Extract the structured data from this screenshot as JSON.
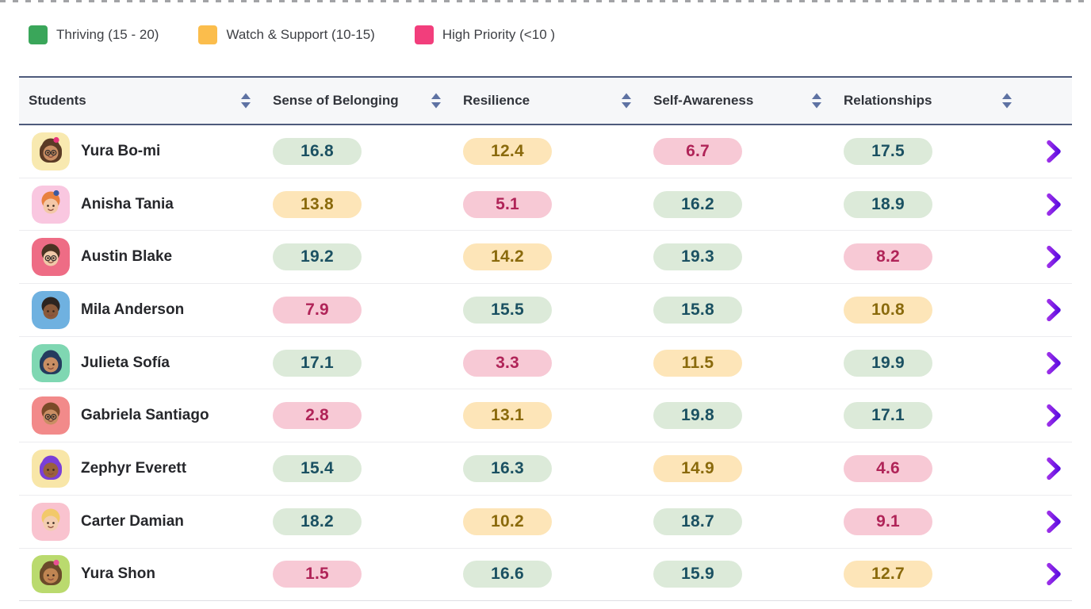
{
  "legend": {
    "items": [
      {
        "label": "Thriving (15 - 20)",
        "color": "#3aa65a"
      },
      {
        "label": "Watch & Support (10-15)",
        "color": "#fbbd4c"
      },
      {
        "label": "High Priority (<10 )",
        "color": "#f23e7c"
      }
    ]
  },
  "table": {
    "columns": [
      {
        "label": "Students"
      },
      {
        "label": "Sense of Belonging"
      },
      {
        "label": "Resilience"
      },
      {
        "label": "Self-Awareness"
      },
      {
        "label": "Relationships"
      }
    ],
    "bands": {
      "thriving_min": 15,
      "watch_min": 10
    },
    "pill_colors": {
      "thriving": {
        "bg": "#dcead9",
        "text": "#1b5162"
      },
      "watch": {
        "bg": "#fde5b8",
        "text": "#8a6a0c"
      },
      "priority": {
        "bg": "#f7c9d5",
        "text": "#b02458"
      }
    },
    "sort_icon_color": "#5e72a3",
    "row_action": {
      "icon": "arrow-right",
      "color_start": "#992ee8",
      "color_end": "#5d0ee0"
    },
    "rows": [
      {
        "name": "Yura Bo-mi",
        "scores": [
          "16.8",
          "12.4",
          "6.7",
          "17.5"
        ],
        "avatar": {
          "bg": "#f8e9b0",
          "hair": "#5a3a25",
          "skin": "#c98e63",
          "glasses": true,
          "long_hair": true,
          "accessory": "#e8327c"
        }
      },
      {
        "name": "Anisha Tania",
        "scores": [
          "13.8",
          "5.1",
          "16.2",
          "18.9"
        ],
        "avatar": {
          "bg": "#f9c7e0",
          "hair": "#e8813f",
          "skin": "#f3c8a8",
          "glasses": false,
          "long_hair": false,
          "accessory": "#3b5aa0"
        }
      },
      {
        "name": "Austin Blake",
        "scores": [
          "19.2",
          "14.2",
          "19.3",
          "8.2"
        ],
        "avatar": {
          "bg": "#ee6c85",
          "hair": "#4a3322",
          "skin": "#f0c9a8",
          "glasses": true,
          "long_hair": false,
          "accessory": null
        }
      },
      {
        "name": "Mila Anderson",
        "scores": [
          "7.9",
          "15.5",
          "15.8",
          "10.8"
        ],
        "avatar": {
          "bg": "#6fb1e0",
          "hair": "#2c2420",
          "skin": "#8a5a3b",
          "glasses": false,
          "long_hair": false,
          "accessory": null
        }
      },
      {
        "name": "Julieta Sofía",
        "scores": [
          "17.1",
          "3.3",
          "11.5",
          "19.9"
        ],
        "avatar": {
          "bg": "#7fd7b2",
          "hair": "#243b5e",
          "skin": "#c98e63",
          "glasses": false,
          "long_hair": true,
          "accessory": null
        }
      },
      {
        "name": "Gabriela Santiago",
        "scores": [
          "2.8",
          "13.1",
          "19.8",
          "17.1"
        ],
        "avatar": {
          "bg": "#f28a8a",
          "hair": "#7a4a28",
          "skin": "#c98e63",
          "glasses": true,
          "long_hair": false,
          "accessory": null
        }
      },
      {
        "name": "Zephyr Everett",
        "scores": [
          "15.4",
          "16.3",
          "14.9",
          "4.6"
        ],
        "avatar": {
          "bg": "#f8e6a8",
          "hair": "#7a3fd8",
          "skin": "#9a613c",
          "glasses": false,
          "long_hair": true,
          "accessory": null
        }
      },
      {
        "name": "Carter Damian",
        "scores": [
          "18.2",
          "10.2",
          "18.7",
          "9.1"
        ],
        "avatar": {
          "bg": "#f9c3cf",
          "hair": "#f2c96a",
          "skin": "#f3cdb0",
          "glasses": false,
          "long_hair": false,
          "accessory": null
        }
      },
      {
        "name": "Yura Shon",
        "scores": [
          "1.5",
          "16.6",
          "15.9",
          "12.7"
        ],
        "avatar": {
          "bg": "#bada6e",
          "hair": "#6b4a2a",
          "skin": "#c08552",
          "glasses": false,
          "long_hair": true,
          "accessory": "#e84f93"
        }
      }
    ]
  }
}
